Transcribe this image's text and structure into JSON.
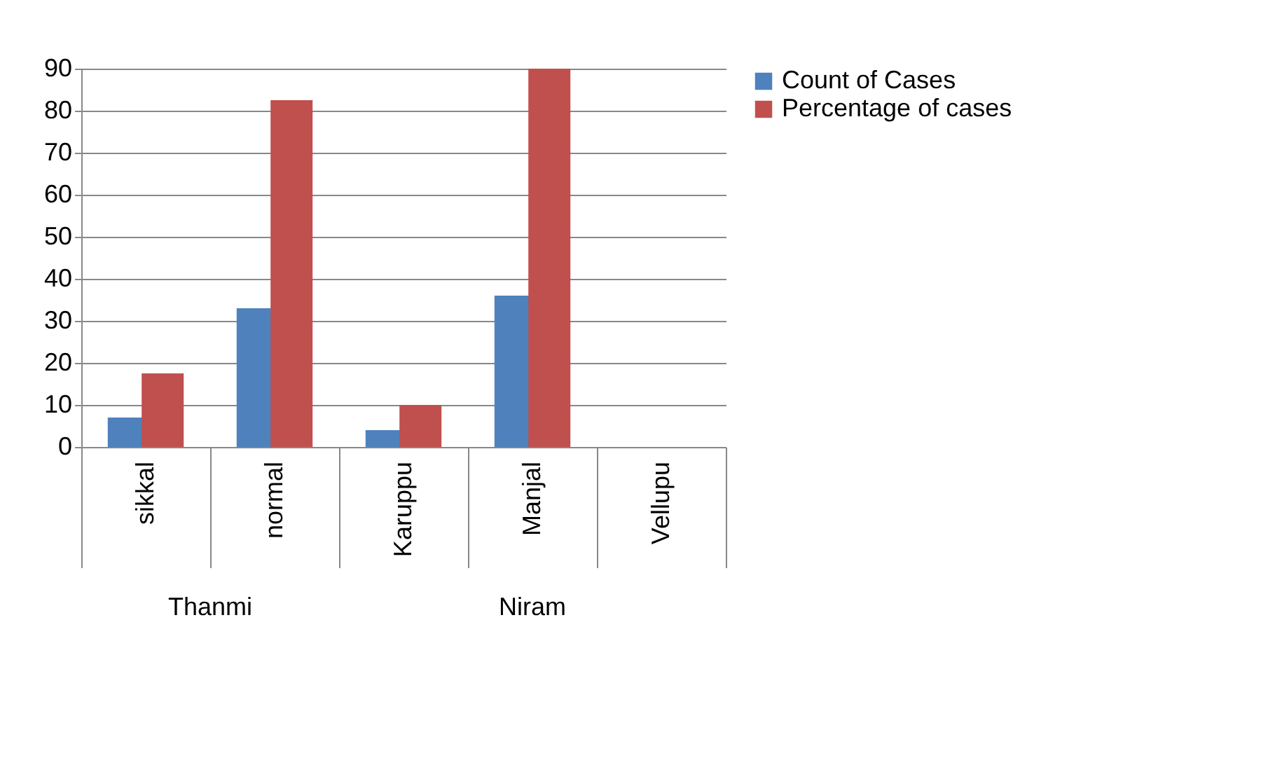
{
  "chart_data": {
    "type": "bar",
    "categories": [
      "sikkal",
      "normal",
      "Karuppu",
      "Manjal",
      "Vellupu"
    ],
    "series": [
      {
        "name": "Count of Cases",
        "color": "#4f81bd",
        "values": [
          7,
          33,
          4,
          36,
          0
        ]
      },
      {
        "name": "Percentage of cases",
        "color": "#c0504d",
        "values": [
          17.5,
          82.5,
          10,
          90,
          0
        ]
      }
    ],
    "annotations": [
      "Thanmi",
      "Niram"
    ],
    "ylim": [
      0,
      90
    ],
    "yticks": [
      0,
      10,
      20,
      30,
      40,
      50,
      60,
      70,
      80,
      90
    ],
    "grid": "y",
    "legend": "right"
  }
}
